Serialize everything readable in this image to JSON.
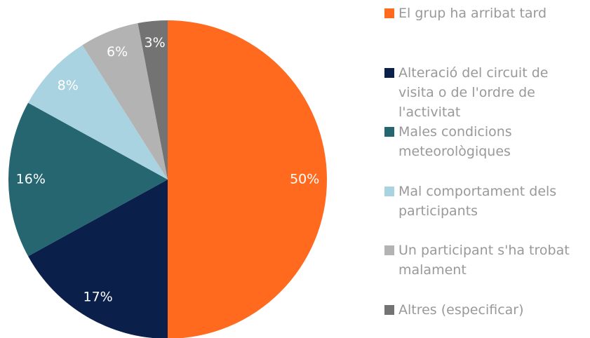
{
  "chart_data": {
    "type": "pie",
    "categories": [
      "El grup ha arribat tard",
      "Alteració del circuit de visita o de l'ordre de l'activitat",
      "Males condicions meteorològiques",
      "Mal comportament dels participants",
      "Un participant s'ha trobat malament",
      "Altres (especificar)"
    ],
    "values": [
      50,
      17,
      16,
      8,
      6,
      3
    ],
    "value_labels": [
      "50%",
      "17%",
      "16%",
      "8%",
      "6%",
      "3%"
    ],
    "colors": [
      "#ff6a1f",
      "#0b1f4b",
      "#256670",
      "#a9d3e0",
      "#b3b3b3",
      "#737373"
    ],
    "legend": "right"
  }
}
